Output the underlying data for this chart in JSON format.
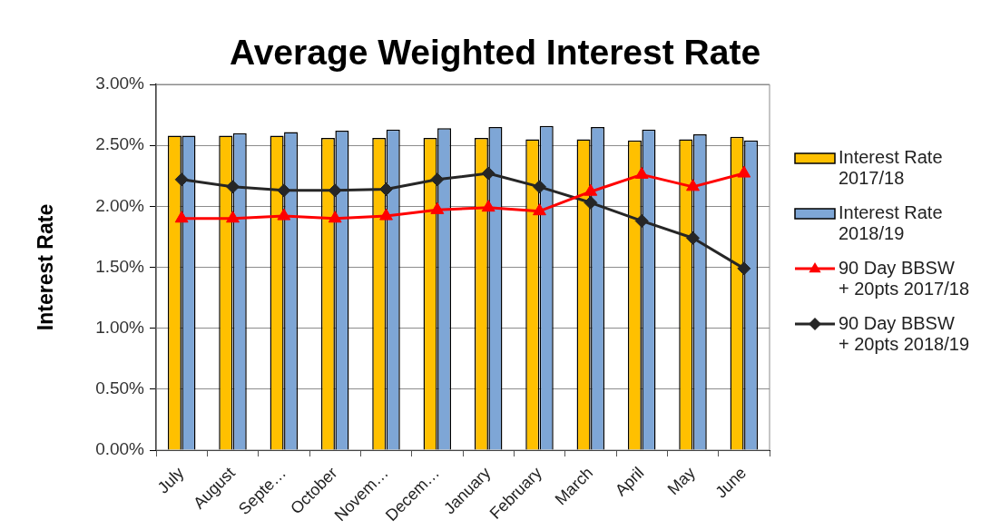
{
  "chart_data": {
    "type": "bar",
    "title": "Average Weighted Interest Rate",
    "ylabel": "Interest Rate",
    "categories": [
      "July",
      "August",
      "Septe…",
      "October",
      "Novem…",
      "Decem…",
      "January",
      "February",
      "March",
      "April",
      "May",
      "June"
    ],
    "series": [
      {
        "name": "Interest Rate 2017/18",
        "color": "#ffc000",
        "values": [
          2.58,
          2.58,
          2.58,
          2.56,
          2.56,
          2.56,
          2.56,
          2.55,
          2.55,
          2.54,
          2.55,
          2.57
        ]
      },
      {
        "name": "Interest Rate 2018/19",
        "color": "#7ea6d6",
        "values": [
          2.58,
          2.6,
          2.61,
          2.62,
          2.63,
          2.64,
          2.65,
          2.66,
          2.65,
          2.63,
          2.59,
          2.54
        ]
      },
      {
        "name": "90 Day BBSW + 20pts 2017/18",
        "type": "line",
        "marker": "triangle",
        "color": "#ff0000",
        "values": [
          1.9,
          1.9,
          1.92,
          1.9,
          1.92,
          1.97,
          1.99,
          1.96,
          2.12,
          2.26,
          2.16,
          2.27
        ]
      },
      {
        "name": "90 Day BBSW + 20pts 2018/19",
        "type": "line",
        "marker": "diamond",
        "color": "#262626",
        "values": [
          2.22,
          2.16,
          2.13,
          2.13,
          2.14,
          2.22,
          2.27,
          2.16,
          2.03,
          1.88,
          1.74,
          1.49
        ]
      }
    ],
    "ylim": [
      0,
      3
    ],
    "yticks": [
      {
        "value": 0,
        "label": "0.00%"
      },
      {
        "value": 0.5,
        "label": "0.50%"
      },
      {
        "value": 1,
        "label": "1.00%"
      },
      {
        "value": 1.5,
        "label": "1.50%"
      },
      {
        "value": 2,
        "label": "2.00%"
      },
      {
        "value": 2.5,
        "label": "2.50%"
      },
      {
        "value": 3,
        "label": "3.00%"
      }
    ],
    "grid": "y",
    "legend": "right"
  }
}
